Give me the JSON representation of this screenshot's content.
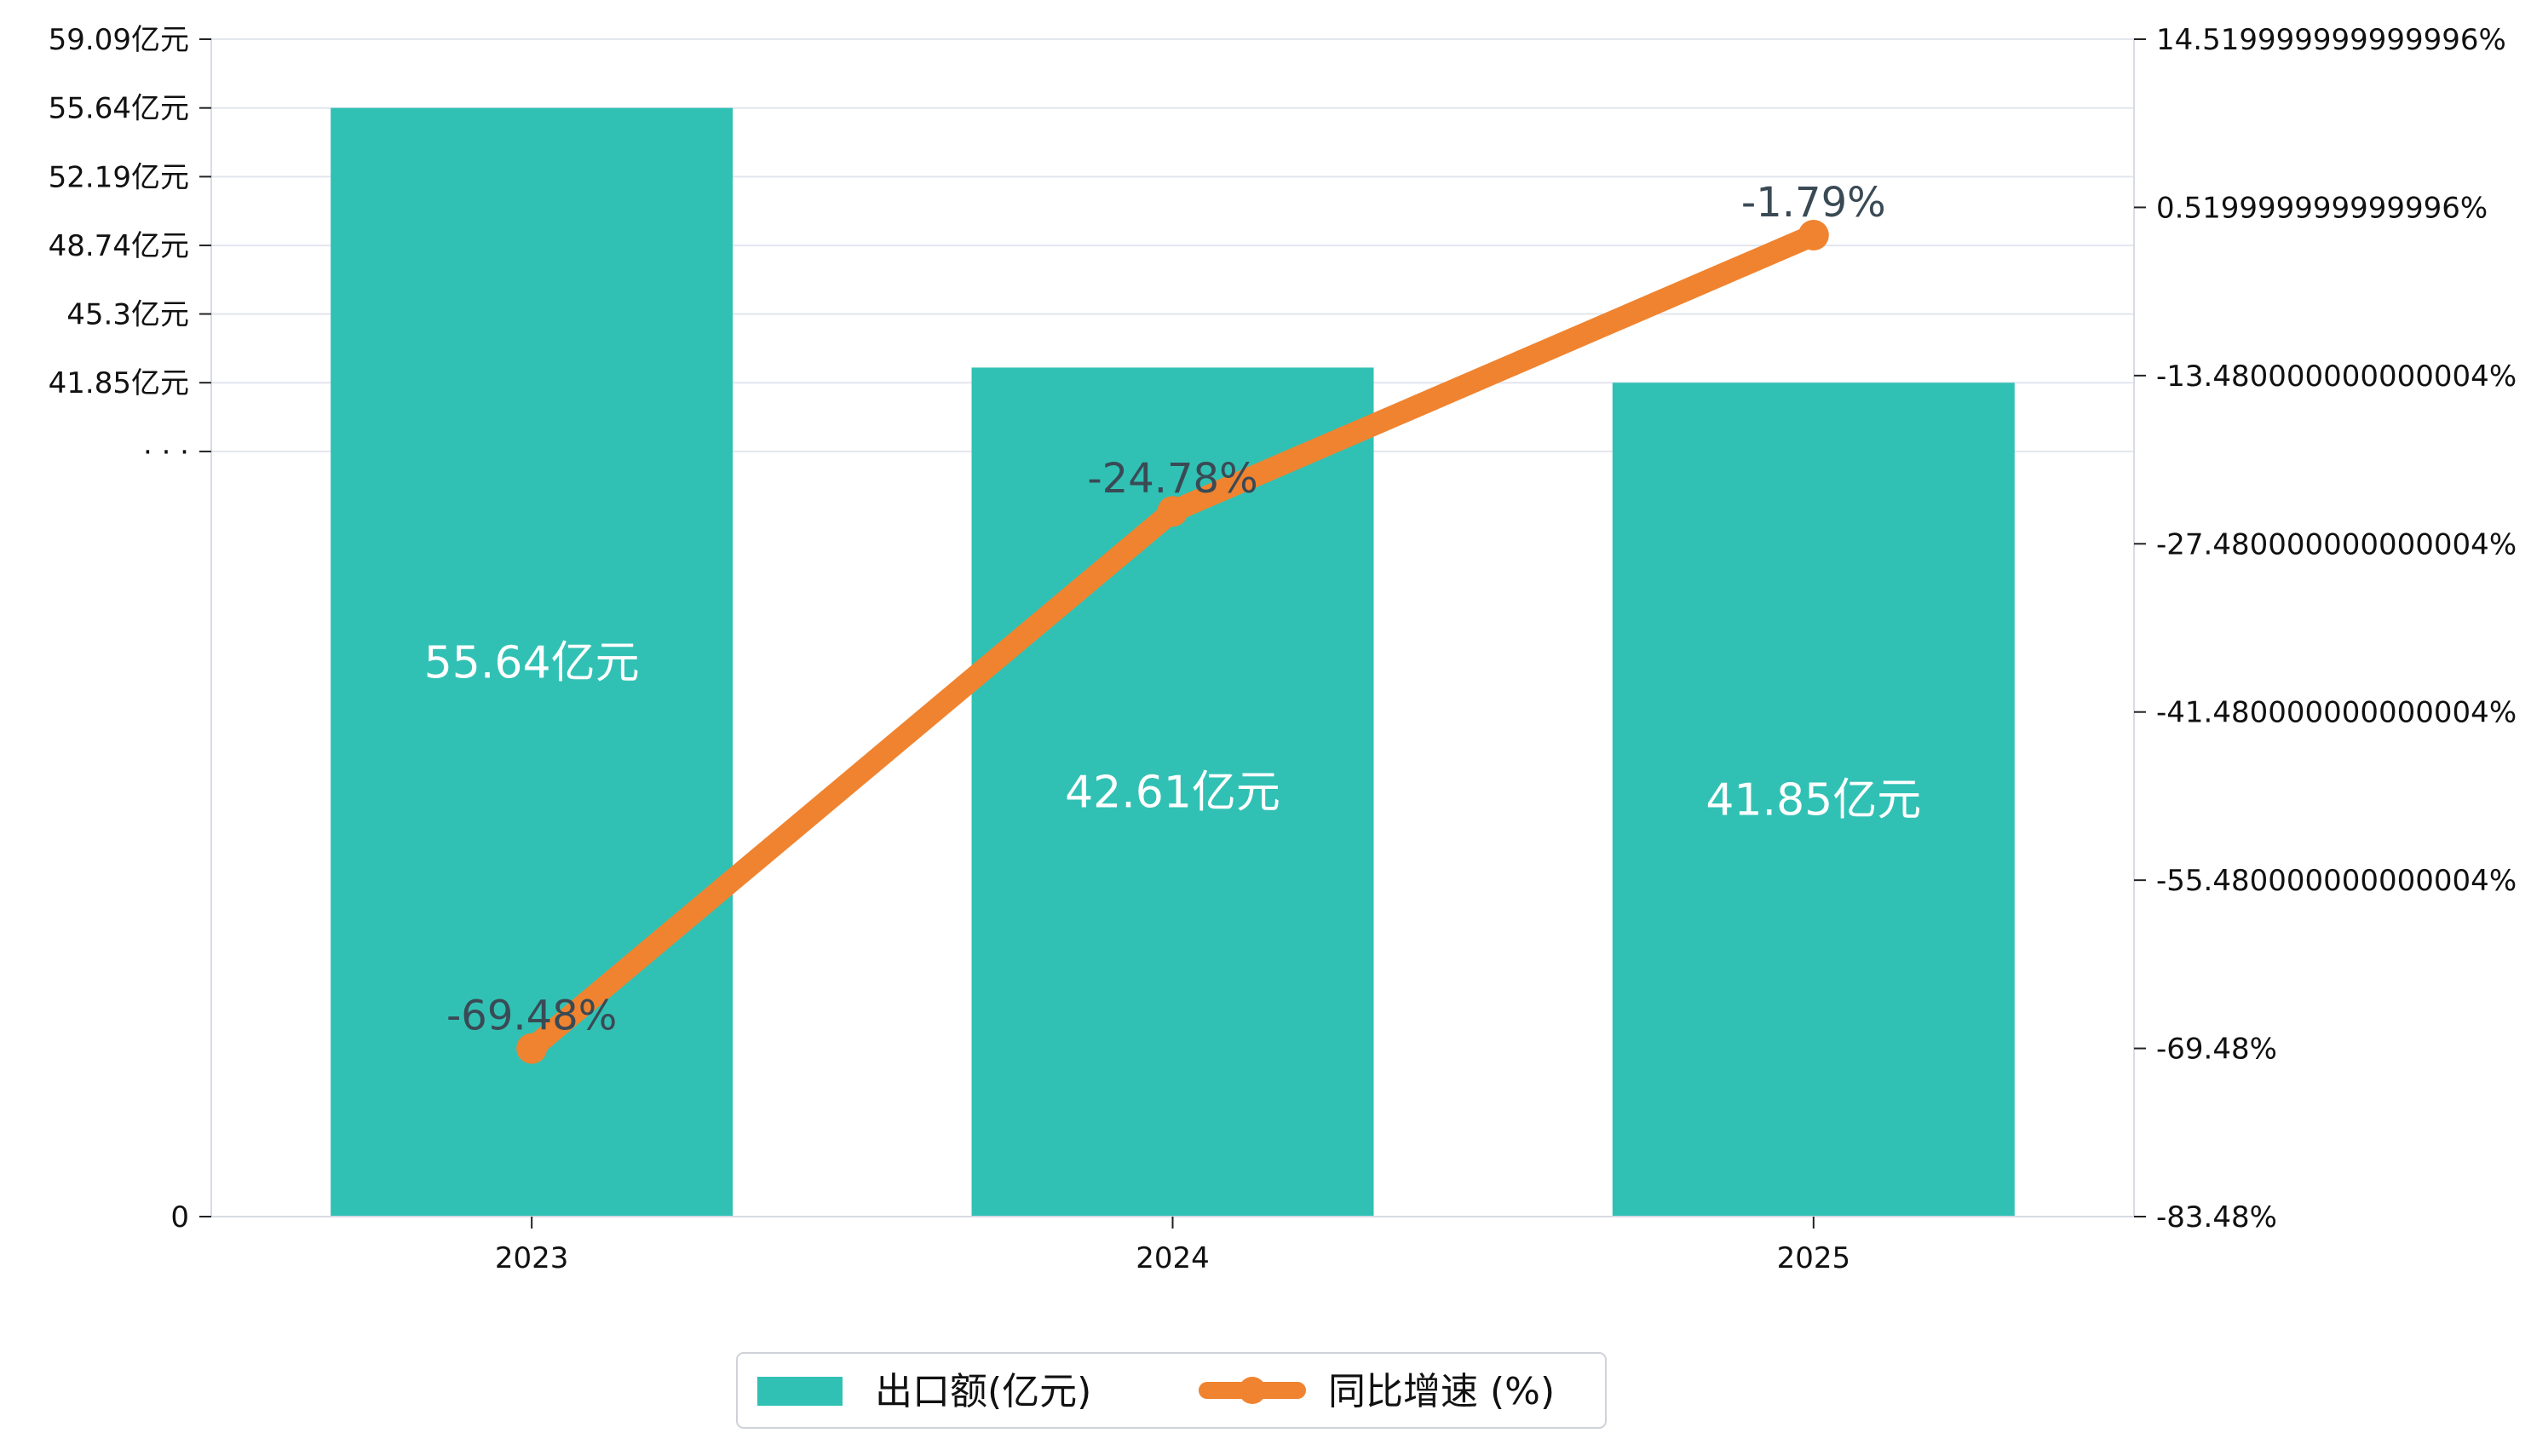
{
  "chart_data": {
    "type": "bar",
    "categories": [
      "2023",
      "2024",
      "2025"
    ],
    "series": [
      {
        "name": "出口额(亿元)",
        "type": "bar",
        "axis": "left",
        "values": [
          55.64,
          42.61,
          41.85
        ],
        "labels": [
          "55.64亿元",
          "42.61亿元",
          "41.85亿元"
        ]
      },
      {
        "name": "同比增速 (%)",
        "type": "line",
        "axis": "right",
        "values": [
          -69.48,
          -24.78,
          -1.79
        ],
        "labels": [
          "-69.48%",
          "-24.78%",
          "-1.79%"
        ]
      }
    ],
    "left_axis": {
      "tick_values": [
        0,
        38.4,
        41.85,
        45.3,
        48.74,
        52.19,
        55.64,
        59.09
      ],
      "tick_labels": [
        "0",
        "· · ·",
        "41.85亿元",
        "45.3亿元",
        "48.74亿元",
        "52.19亿元",
        "55.64亿元",
        "59.09亿元"
      ],
      "ylim": [
        0,
        59.09
      ]
    },
    "right_axis": {
      "tick_values": [
        -83.48,
        -69.48,
        -55.48,
        -41.48,
        -27.48,
        -13.48,
        0.52,
        14.52
      ],
      "tick_labels": [
        "-83.48%",
        "-69.48%",
        "-55.480000000000004%",
        "-41.480000000000004%",
        "-27.480000000000004%",
        "-13.480000000000004%",
        "0.519999999999996%",
        "14.519999999999996%"
      ],
      "ylim": [
        -83.48,
        14.52
      ]
    },
    "colors": {
      "bar": "#31c1b4",
      "line": "#f0832f",
      "grid": "#e3e6ef",
      "axis": "#d8dbe5"
    },
    "grid": true,
    "legend_position": "bottom-center"
  }
}
